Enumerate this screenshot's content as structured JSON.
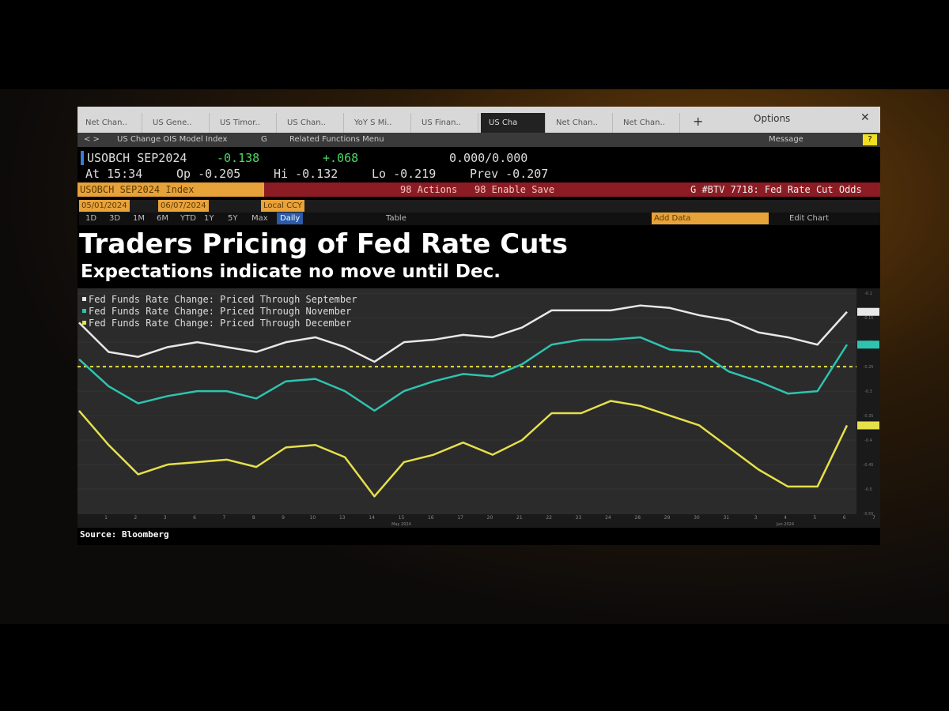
{
  "ui": {
    "tabs": [
      "Net Chan..",
      "US Gene..",
      "US Timor..",
      "US Chan..",
      "YoY S Mi..",
      "US Finan..",
      "US Cha",
      "Net Chan..",
      "Net Chan.."
    ],
    "options": "Options",
    "menu": [
      "US Change OIS Model Index",
      "G",
      "Related Functions Menu"
    ],
    "message": "Message",
    "quote": {
      "ticker": "USOBCH SEP2024",
      "last": "-0.138",
      "change": "+.068",
      "bidask": "0.000/0.000",
      "time": "At 15:34",
      "open": "Op -0.205",
      "high": "Hi -0.132",
      "low": "Lo -0.219",
      "prev": "Prev -0.207"
    },
    "security": "USOBCH SEP2024 Index",
    "actions": "98 Actions",
    "enable_save": "98 Enable Save",
    "chart_name": "G #BTV 7718: Fed Rate Cut Odds",
    "start_date": "05/01/2024",
    "end_date": "06/07/2024",
    "currency": "Local CCY",
    "ranges": [
      "1D",
      "3D",
      "1M",
      "6M",
      "YTD",
      "1Y",
      "5Y",
      "Max"
    ],
    "period": "Daily",
    "table": "Table",
    "add_data": "Add Data",
    "edit_chart": "Edit Chart",
    "source": "Source: Bloomberg"
  },
  "chart_data": {
    "type": "line",
    "title": "Traders Pricing of Fed Rate Cuts",
    "subtitle": "Expectations indicate no move until Dec.",
    "categories": [
      "1",
      "2",
      "3",
      "6",
      "7",
      "8",
      "9",
      "10",
      "13",
      "14",
      "15",
      "16",
      "17",
      "20",
      "21",
      "22",
      "23",
      "24",
      "28",
      "29",
      "30",
      "31",
      "3",
      "4",
      "5",
      "6",
      "7"
    ],
    "x_axis_labels": [
      "May 2024",
      "Jun 2024"
    ],
    "series": [
      {
        "name": "Fed Funds Rate Change: Priced Through September",
        "color": "#e8e8e8",
        "values": [
          -0.16,
          -0.22,
          -0.23,
          -0.21,
          -0.2,
          -0.21,
          -0.22,
          -0.2,
          -0.19,
          -0.21,
          -0.24,
          -0.2,
          -0.195,
          -0.185,
          -0.19,
          -0.17,
          -0.135,
          -0.135,
          -0.135,
          -0.125,
          -0.13,
          -0.145,
          -0.155,
          -0.18,
          -0.19,
          -0.205,
          -0.138
        ]
      },
      {
        "name": "Fed Funds Rate Change: Priced Through November",
        "color": "#2ec4b0",
        "values": [
          -0.235,
          -0.29,
          -0.325,
          -0.31,
          -0.3,
          -0.3,
          -0.315,
          -0.28,
          -0.275,
          -0.3,
          -0.34,
          -0.3,
          -0.28,
          -0.265,
          -0.27,
          -0.245,
          -0.205,
          -0.195,
          -0.195,
          -0.19,
          -0.215,
          -0.22,
          -0.26,
          -0.28,
          -0.305,
          -0.3,
          -0.205
        ]
      },
      {
        "name": "Fed Funds Rate Change: Priced Through December",
        "color": "#e6e04a",
        "values": [
          -0.34,
          -0.41,
          -0.47,
          -0.45,
          -0.445,
          -0.44,
          -0.455,
          -0.415,
          -0.41,
          -0.435,
          -0.515,
          -0.445,
          -0.43,
          -0.405,
          -0.43,
          -0.4,
          -0.345,
          -0.345,
          -0.32,
          -0.33,
          -0.35,
          -0.37,
          -0.415,
          -0.46,
          -0.495,
          -0.495,
          -0.37
        ]
      }
    ],
    "ylim": [
      -0.55,
      -0.09
    ],
    "yticks": [
      -0.1,
      -0.15,
      -0.2,
      -0.25,
      -0.3,
      -0.35,
      -0.4,
      -0.45,
      -0.5,
      -0.55
    ],
    "reference_line": -0.25,
    "reference_color": "#e6e04a"
  }
}
